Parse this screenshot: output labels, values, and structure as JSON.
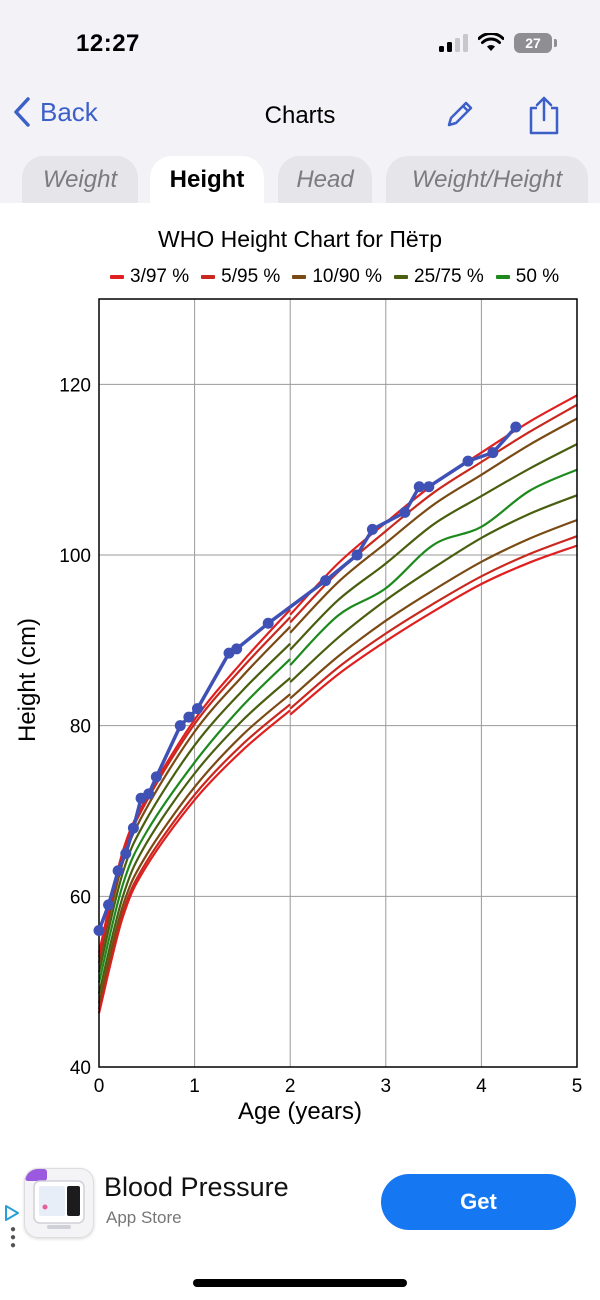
{
  "status": {
    "time": "12:27",
    "battery": "27"
  },
  "nav": {
    "back_label": "Back",
    "title": "Charts"
  },
  "tabs": [
    {
      "label": "Weight",
      "active": false
    },
    {
      "label": "Height",
      "active": true
    },
    {
      "label": "Head",
      "active": false
    },
    {
      "label": "Weight/Height",
      "active": false
    }
  ],
  "colors": {
    "p3": "#e02020",
    "p5": "#c8281e",
    "p10": "#7a4a14",
    "p25": "#4a5e10",
    "p50": "#1e8a1e",
    "child": "#3f51b5",
    "accent": "#3c5fc8",
    "get": "#1677f2"
  },
  "chart_data": {
    "type": "line",
    "title": "WHO Height Chart for Пётр",
    "xlabel": "Age (years)",
    "ylabel": "Height (cm)",
    "xlim": [
      0,
      5
    ],
    "ylim": [
      40,
      130
    ],
    "xticks": [
      0,
      1,
      2,
      3,
      4,
      5
    ],
    "yticks": [
      40,
      60,
      80,
      100,
      120
    ],
    "grid": true,
    "legend": [
      {
        "label": "3/97 %",
        "color_key": "p3"
      },
      {
        "label": "5/95 %",
        "color_key": "p5"
      },
      {
        "label": "10/90 %",
        "color_key": "p10"
      },
      {
        "label": "25/75 %",
        "color_key": "p25"
      },
      {
        "label": "50 %",
        "color_key": "p50"
      }
    ],
    "percentiles": [
      {
        "name": "3",
        "color_key": "p3",
        "x": [
          0,
          0.25,
          0.5,
          1,
          1.5,
          2,
          2.0001,
          2.5,
          3,
          3.5,
          4,
          4.5,
          5
        ],
        "y": [
          46.3,
          57.6,
          63.6,
          71.3,
          77.1,
          81.8,
          81.3,
          86.0,
          89.9,
          93.4,
          96.6,
          99.1,
          101.1
        ]
      },
      {
        "name": "5",
        "color_key": "p5",
        "x": [
          0,
          0.25,
          0.5,
          1,
          1.5,
          2,
          2.0001,
          2.5,
          3,
          3.5,
          4,
          4.5,
          5
        ],
        "y": [
          46.8,
          58.1,
          64.1,
          71.9,
          77.8,
          82.5,
          82.0,
          86.8,
          90.8,
          94.3,
          97.5,
          100.1,
          102.2
        ]
      },
      {
        "name": "10",
        "color_key": "p10",
        "x": [
          0,
          0.25,
          0.5,
          1,
          1.5,
          2,
          2.0001,
          2.5,
          3,
          3.5,
          4,
          4.5,
          5
        ],
        "y": [
          47.5,
          58.9,
          64.9,
          72.8,
          78.9,
          83.7,
          83.2,
          88.1,
          92.3,
          95.9,
          99.2,
          101.9,
          104.1
        ]
      },
      {
        "name": "25",
        "color_key": "p25",
        "x": [
          0,
          0.25,
          0.5,
          1,
          1.5,
          2,
          2.0001,
          2.5,
          3,
          3.5,
          4,
          4.5,
          5
        ],
        "y": [
          48.6,
          60.0,
          66.3,
          74.4,
          80.6,
          85.6,
          85.1,
          90.3,
          94.7,
          98.5,
          102.0,
          104.8,
          107.0
        ]
      },
      {
        "name": "50",
        "color_key": "p50",
        "x": [
          0,
          0.25,
          0.5,
          1,
          1.5,
          2,
          2.0001,
          2.5,
          3,
          3.5,
          4,
          4.5,
          5
        ],
        "y": [
          49.9,
          61.4,
          67.6,
          75.7,
          82.3,
          87.8,
          87.1,
          92.9,
          96.1,
          101.2,
          103.3,
          107.5,
          110.0
        ]
      },
      {
        "name": "75",
        "color_key": "p25",
        "x": [
          0,
          0.25,
          0.5,
          1,
          1.5,
          2,
          2.0001,
          2.5,
          3,
          3.5,
          4,
          4.5,
          5
        ],
        "y": [
          51.1,
          62.8,
          69.1,
          77.7,
          84.1,
          89.6,
          88.9,
          94.7,
          99.0,
          103.6,
          106.9,
          110.1,
          113.0
        ]
      },
      {
        "name": "90",
        "color_key": "p10",
        "x": [
          0,
          0.25,
          0.5,
          1,
          1.5,
          2,
          2.0001,
          2.5,
          3,
          3.5,
          4,
          4.5,
          5
        ],
        "y": [
          52.2,
          64.0,
          70.4,
          79.3,
          85.8,
          91.6,
          90.9,
          96.8,
          101.4,
          105.9,
          109.4,
          112.9,
          116.0
        ]
      },
      {
        "name": "95",
        "color_key": "p5",
        "x": [
          0,
          0.25,
          0.5,
          1,
          1.5,
          2,
          2.0001,
          2.5,
          3,
          3.5,
          4,
          4.5,
          5
        ],
        "y": [
          52.9,
          64.8,
          71.2,
          80.2,
          86.8,
          92.7,
          92.1,
          98.0,
          102.8,
          107.3,
          110.9,
          114.4,
          117.6
        ]
      },
      {
        "name": "97",
        "color_key": "p3",
        "x": [
          0,
          0.25,
          0.5,
          1,
          1.5,
          2,
          2.0001,
          2.5,
          3,
          3.5,
          4,
          4.5,
          5
        ],
        "y": [
          53.4,
          65.3,
          71.6,
          80.7,
          87.5,
          93.6,
          93.0,
          99.0,
          103.8,
          108.3,
          112.0,
          115.6,
          118.7
        ]
      }
    ],
    "child_series": {
      "name": "Пётр",
      "color_key": "child",
      "x": [
        0.0,
        0.1,
        0.2,
        0.28,
        0.36,
        0.44,
        0.52,
        0.6,
        0.85,
        0.94,
        1.03,
        1.36,
        1.44,
        1.77,
        2.37,
        2.7,
        2.86,
        3.2,
        3.35,
        3.45,
        3.86,
        4.12,
        4.36
      ],
      "y": [
        56.0,
        59.0,
        63.0,
        65.0,
        68.0,
        71.5,
        72.0,
        74.0,
        80.0,
        81.0,
        82.0,
        88.5,
        89.0,
        92.0,
        97.0,
        100.0,
        103.0,
        105.0,
        108.0,
        108.0,
        111.0,
        112.0,
        115.0
      ]
    }
  },
  "ad": {
    "name": "Blood Pressure",
    "store": "App Store",
    "cta": "Get"
  }
}
